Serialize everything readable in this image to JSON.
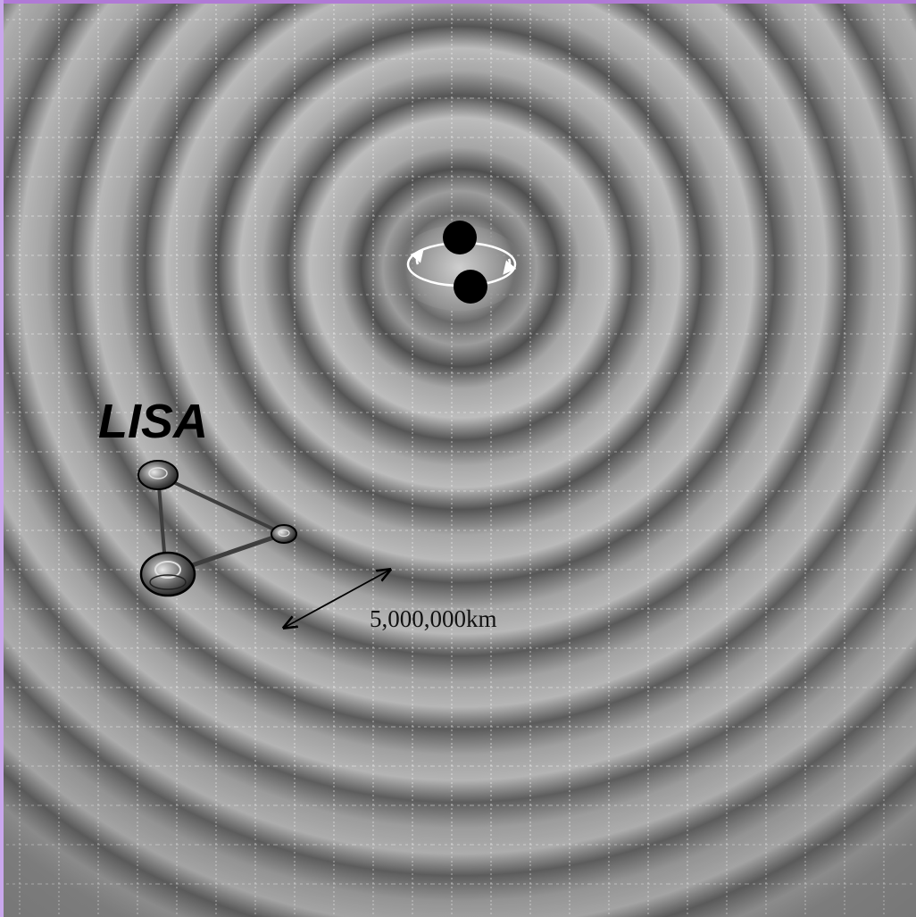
{
  "figure": {
    "mission_label": "LISA",
    "distance_label": "5,000,000km"
  },
  "colors": {
    "surface": "#7a7a7a",
    "ridge_light": "#b8b8b8",
    "trough_dark": "#4e4e4e",
    "grid": "#ffffff",
    "frame_accent": "#b07ad6",
    "black_hole": "#000000"
  },
  "icons": {
    "black_holes": "black-hole-pair-icon",
    "orbit": "orbit-arrows-icon",
    "spacecraft": "spacecraft-icon",
    "distance": "double-arrow-icon"
  }
}
